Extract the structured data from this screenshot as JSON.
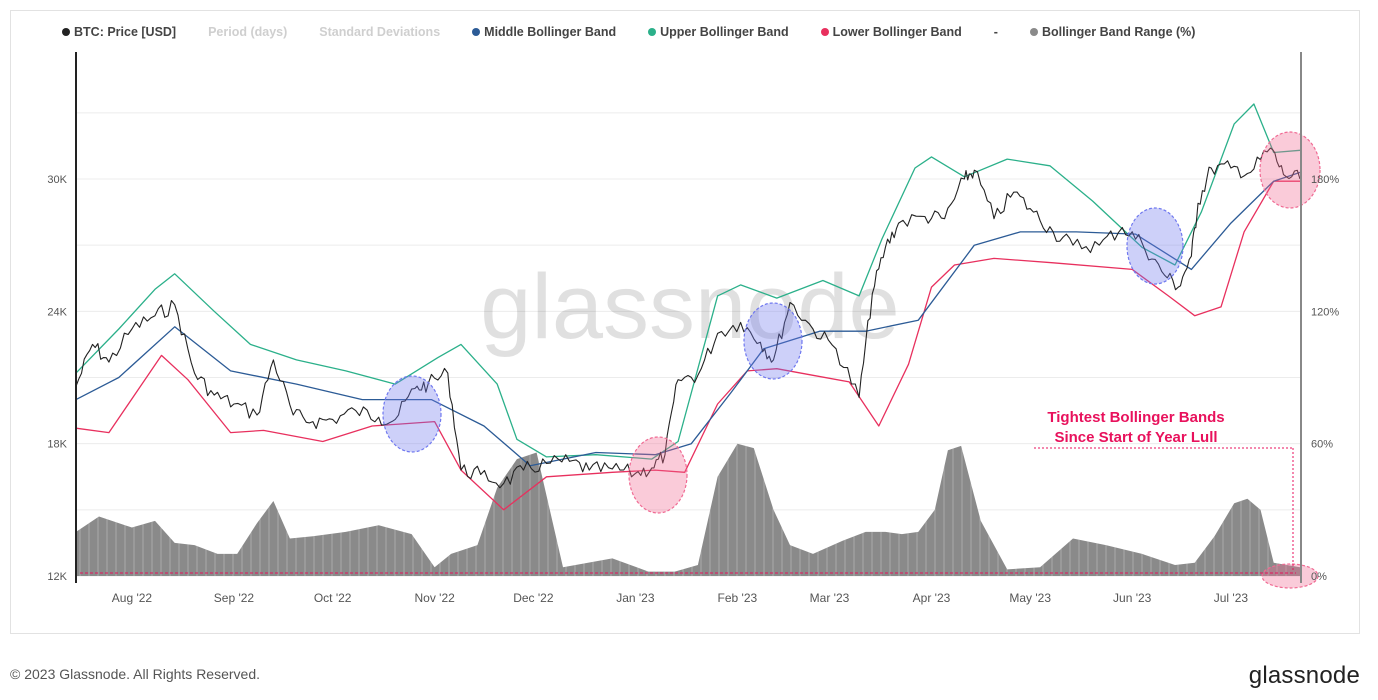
{
  "legend": {
    "btc": "BTC: Price [USD]",
    "period": "Period (days)",
    "stdev": "Standard Deviations",
    "middle": "Middle Bollinger Band",
    "upper": "Upper Bollinger Band",
    "lower": "Lower Bollinger Band",
    "dash": "-",
    "range": "Bollinger Band Range (%)"
  },
  "colors": {
    "price": "#222222",
    "middle": "#2c5b96",
    "upper": "#2bb08a",
    "lower": "#e8305e",
    "range": "#8a8a8a",
    "annotation": "#e8115c",
    "circle_blue": "#6f78ef",
    "circle_pink": "#f06a93"
  },
  "watermark": "glassnode",
  "annotation": {
    "line1": "Tightest Bollinger Bands",
    "line2": "Since Start of Year Lull"
  },
  "footer": "© 2023 Glassnode. All Rights Reserved.",
  "brand": "glassnode",
  "chart_data": {
    "type": "line",
    "x_ticks": [
      "Aug '22",
      "Sep '22",
      "Oct '22",
      "Nov '22",
      "Dec '22",
      "Jan '23",
      "Feb '23",
      "Mar '23",
      "Apr '23",
      "May '23",
      "Jun '23",
      "Jul '23"
    ],
    "y_left": {
      "ticks": [
        "12K",
        "18K",
        "24K",
        "30K"
      ],
      "range": [
        12000,
        33000
      ],
      "scale": "linear"
    },
    "y_right": {
      "ticks": [
        "0%",
        "60%",
        "120%",
        "180%"
      ],
      "range": [
        0,
        180
      ]
    },
    "grid": "horizontal",
    "legend_position": "top-left",
    "series": [
      {
        "name": "BTC: Price [USD]",
        "x": [
          "2022-07-15",
          "2022-07-20",
          "2022-07-25",
          "2022-08-01",
          "2022-08-08",
          "2022-08-14",
          "2022-08-20",
          "2022-08-26",
          "2022-09-01",
          "2022-09-08",
          "2022-09-13",
          "2022-09-19",
          "2022-09-25",
          "2022-10-01",
          "2022-10-08",
          "2022-10-15",
          "2022-10-20",
          "2022-10-26",
          "2022-10-30",
          "2022-11-05",
          "2022-11-09",
          "2022-11-15",
          "2022-11-22",
          "2022-11-28",
          "2022-12-05",
          "2022-12-12",
          "2022-12-18",
          "2022-12-25",
          "2023-01-01",
          "2023-01-06",
          "2023-01-10",
          "2023-01-14",
          "2023-01-20",
          "2023-01-26",
          "2023-02-02",
          "2023-02-08",
          "2023-02-12",
          "2023-02-17",
          "2023-02-24",
          "2023-03-03",
          "2023-03-10",
          "2023-03-14",
          "2023-03-18",
          "2023-03-22",
          "2023-03-30",
          "2023-04-05",
          "2023-04-11",
          "2023-04-14",
          "2023-04-20",
          "2023-04-26",
          "2023-05-02",
          "2023-05-08",
          "2023-05-14",
          "2023-05-22",
          "2023-05-29",
          "2023-06-04",
          "2023-06-10",
          "2023-06-15",
          "2023-06-19",
          "2023-06-21",
          "2023-06-25",
          "2023-07-01",
          "2023-07-07",
          "2023-07-13",
          "2023-07-17",
          "2023-07-22"
        ],
        "values": [
          20600,
          22500,
          21700,
          23200,
          23800,
          24300,
          21200,
          20200,
          19800,
          19300,
          21800,
          19300,
          19000,
          19100,
          19500,
          19200,
          19100,
          20500,
          20700,
          21200,
          16800,
          16600,
          16200,
          16800,
          17100,
          17200,
          16800,
          16850,
          16650,
          16900,
          17500,
          20900,
          21100,
          23000,
          23500,
          22600,
          21800,
          24400,
          23200,
          22300,
          20100,
          24800,
          26900,
          28000,
          28300,
          28200,
          30000,
          30400,
          28200,
          29400,
          28500,
          27600,
          27000,
          27000,
          27800,
          27100,
          25800,
          25100,
          26500,
          28900,
          30500,
          30500,
          30300,
          31400,
          30200,
          30000
        ]
      },
      {
        "name": "Middle Bollinger Band",
        "x": [
          "2022-07-15",
          "2022-07-28",
          "2022-08-14",
          "2022-08-31",
          "2022-09-20",
          "2022-10-10",
          "2022-10-31",
          "2022-11-16",
          "2022-11-30",
          "2022-12-20",
          "2023-01-07",
          "2023-01-18",
          "2023-01-30",
          "2023-02-09",
          "2023-02-26",
          "2023-03-12",
          "2023-03-28",
          "2023-04-14",
          "2023-04-28",
          "2023-05-15",
          "2023-06-02",
          "2023-06-19",
          "2023-07-01",
          "2023-07-14",
          "2023-07-22"
        ],
        "values": [
          20000,
          21000,
          23300,
          21300,
          20700,
          20000,
          20000,
          18800,
          17000,
          17600,
          17500,
          18000,
          20300,
          22300,
          23100,
          23100,
          23600,
          27000,
          27600,
          27600,
          27500,
          25900,
          28000,
          29900,
          30300
        ]
      },
      {
        "name": "Upper Bollinger Band",
        "x": [
          "2022-07-15",
          "2022-07-28",
          "2022-08-08",
          "2022-08-14",
          "2022-08-26",
          "2022-09-06",
          "2022-09-20",
          "2022-10-05",
          "2022-10-20",
          "2022-11-02",
          "2022-11-09",
          "2022-11-20",
          "2022-11-26",
          "2022-12-05",
          "2022-12-20",
          "2023-01-06",
          "2023-01-14",
          "2023-01-26",
          "2023-02-02",
          "2023-02-13",
          "2023-02-27",
          "2023-03-10",
          "2023-03-17",
          "2023-03-27",
          "2023-04-01",
          "2023-04-11",
          "2023-04-24",
          "2023-05-07",
          "2023-05-20",
          "2023-06-04",
          "2023-06-14",
          "2023-06-22",
          "2023-07-02",
          "2023-07-08",
          "2023-07-14",
          "2023-07-22"
        ],
        "values": [
          21200,
          23200,
          25000,
          25700,
          24000,
          22500,
          21800,
          21300,
          20700,
          21900,
          22500,
          20700,
          18200,
          17400,
          17500,
          17300,
          18100,
          24700,
          25200,
          24600,
          25400,
          24700,
          27300,
          30500,
          31000,
          30100,
          30900,
          30600,
          29000,
          26900,
          26100,
          28500,
          32500,
          33400,
          31200,
          31300
        ]
      },
      {
        "name": "Lower Bollinger Band",
        "x": [
          "2022-07-15",
          "2022-07-25",
          "2022-08-10",
          "2022-08-18",
          "2022-08-31",
          "2022-09-10",
          "2022-09-28",
          "2022-10-13",
          "2022-11-01",
          "2022-11-09",
          "2022-11-22",
          "2022-12-05",
          "2022-12-25",
          "2023-01-07",
          "2023-01-16",
          "2023-01-26",
          "2023-02-04",
          "2023-02-13",
          "2023-02-24",
          "2023-03-07",
          "2023-03-16",
          "2023-03-25",
          "2023-04-01",
          "2023-04-08",
          "2023-04-20",
          "2023-05-08",
          "2023-06-01",
          "2023-06-12",
          "2023-06-20",
          "2023-06-28",
          "2023-07-05",
          "2023-07-14",
          "2023-07-22"
        ],
        "values": [
          18700,
          18500,
          22000,
          20900,
          18500,
          18600,
          18100,
          18800,
          19000,
          16800,
          15000,
          16500,
          16700,
          16800,
          16700,
          19800,
          21300,
          21400,
          21100,
          20800,
          18800,
          21600,
          25100,
          26100,
          26400,
          26200,
          25900,
          24700,
          23800,
          24200,
          27600,
          29900,
          29900
        ]
      },
      {
        "name": "Bollinger Band Range (%)",
        "x": [
          "2022-07-15",
          "2022-07-22",
          "2022-08-01",
          "2022-08-08",
          "2022-08-14",
          "2022-08-20",
          "2022-08-27",
          "2022-09-02",
          "2022-09-08",
          "2022-09-13",
          "2022-09-18",
          "2022-09-25",
          "2022-10-05",
          "2022-10-15",
          "2022-10-25",
          "2022-11-01",
          "2022-11-06",
          "2022-11-10",
          "2022-11-14",
          "2022-11-20",
          "2022-11-26",
          "2022-12-02",
          "2022-12-10",
          "2022-12-25",
          "2023-01-05",
          "2023-01-10",
          "2023-01-13",
          "2023-01-20",
          "2023-01-26",
          "2023-02-01",
          "2023-02-06",
          "2023-02-12",
          "2023-02-17",
          "2023-02-24",
          "2023-03-05",
          "2023-03-12",
          "2023-03-18",
          "2023-03-23",
          "2023-03-28",
          "2023-04-02",
          "2023-04-06",
          "2023-04-10",
          "2023-04-16",
          "2023-04-24",
          "2023-05-04",
          "2023-05-14",
          "2023-05-24",
          "2023-06-04",
          "2023-06-14",
          "2023-06-20",
          "2023-06-26",
          "2023-07-02",
          "2023-07-06",
          "2023-07-10",
          "2023-07-14",
          "2023-07-22"
        ],
        "values": [
          20,
          27,
          22,
          25,
          15,
          14,
          10,
          10,
          24,
          34,
          17,
          18,
          20,
          23,
          19,
          4,
          10,
          12,
          14,
          40,
          53,
          56,
          4,
          8,
          2,
          2,
          2,
          5,
          45,
          60,
          58,
          30,
          14,
          10,
          16,
          20,
          20,
          19,
          20,
          30,
          57,
          59,
          25,
          3,
          4,
          17,
          14,
          10,
          5,
          6,
          18,
          33,
          35,
          30,
          6,
          4
        ]
      }
    ]
  }
}
